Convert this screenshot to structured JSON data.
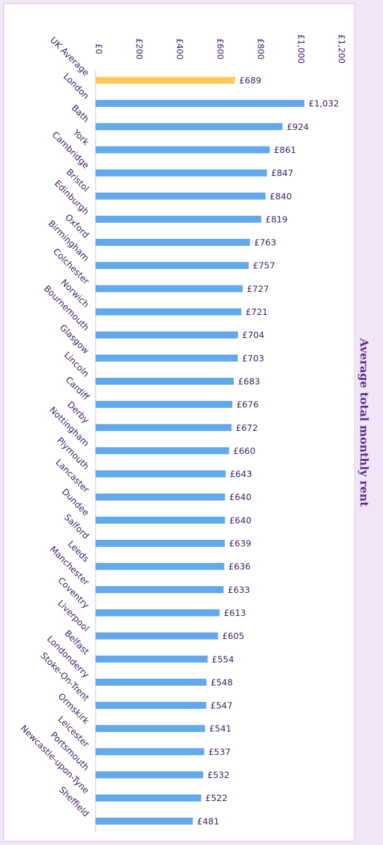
{
  "chart_data": {
    "type": "bar",
    "orientation": "horizontal",
    "title": "Average total monthly rent",
    "xlim": [
      0,
      1200
    ],
    "x_ticks": [
      "£0",
      "£200",
      "£400",
      "£600",
      "£800",
      "£1,000",
      "£1,200"
    ],
    "tick_values": [
      0,
      200,
      400,
      600,
      800,
      1000,
      1200
    ],
    "grid": false,
    "colors": {
      "highlight": "#ffcc5c",
      "bar": "#61a8ec",
      "text": "#3f1f66",
      "title": "#5a2d91"
    },
    "categories": [
      "UK Average",
      "London",
      "Bath",
      "York",
      "Cambridge",
      "Bristol",
      "Edinburgh",
      "Oxford",
      "Birmingham",
      "Colchester",
      "Norwich",
      "Bournemouth",
      "Glasgow",
      "Lincoln",
      "Cardiff",
      "Derby",
      "Nottingham",
      "Plymouth",
      "Lancaster",
      "Dundee",
      "Salford",
      "Leeds",
      "Manchester",
      "Coventry",
      "Liverpool",
      "Belfast",
      "Londonderry",
      "Stoke-On-Trent",
      "Ormskirk",
      "Leicester",
      "Portsmouth",
      "Newcastle-upon-Tyne",
      "Sheffield"
    ],
    "values": [
      689,
      1032,
      924,
      861,
      847,
      840,
      819,
      763,
      757,
      727,
      721,
      704,
      703,
      683,
      676,
      672,
      660,
      643,
      640,
      640,
      639,
      636,
      633,
      613,
      605,
      554,
      548,
      547,
      541,
      537,
      532,
      522,
      481
    ],
    "value_labels": [
      "£689",
      "£1,032",
      "£924",
      "£861",
      "£847",
      "£840",
      "£819",
      "£763",
      "£757",
      "£727",
      "£721",
      "£704",
      "£703",
      "£683",
      "£676",
      "£672",
      "£660",
      "£643",
      "£640",
      "£640",
      "£639",
      "£636",
      "£633",
      "£613",
      "£605",
      "£554",
      "£548",
      "£547",
      "£541",
      "£537",
      "£532",
      "£522",
      "£481"
    ],
    "highlight_category": "UK Average"
  }
}
